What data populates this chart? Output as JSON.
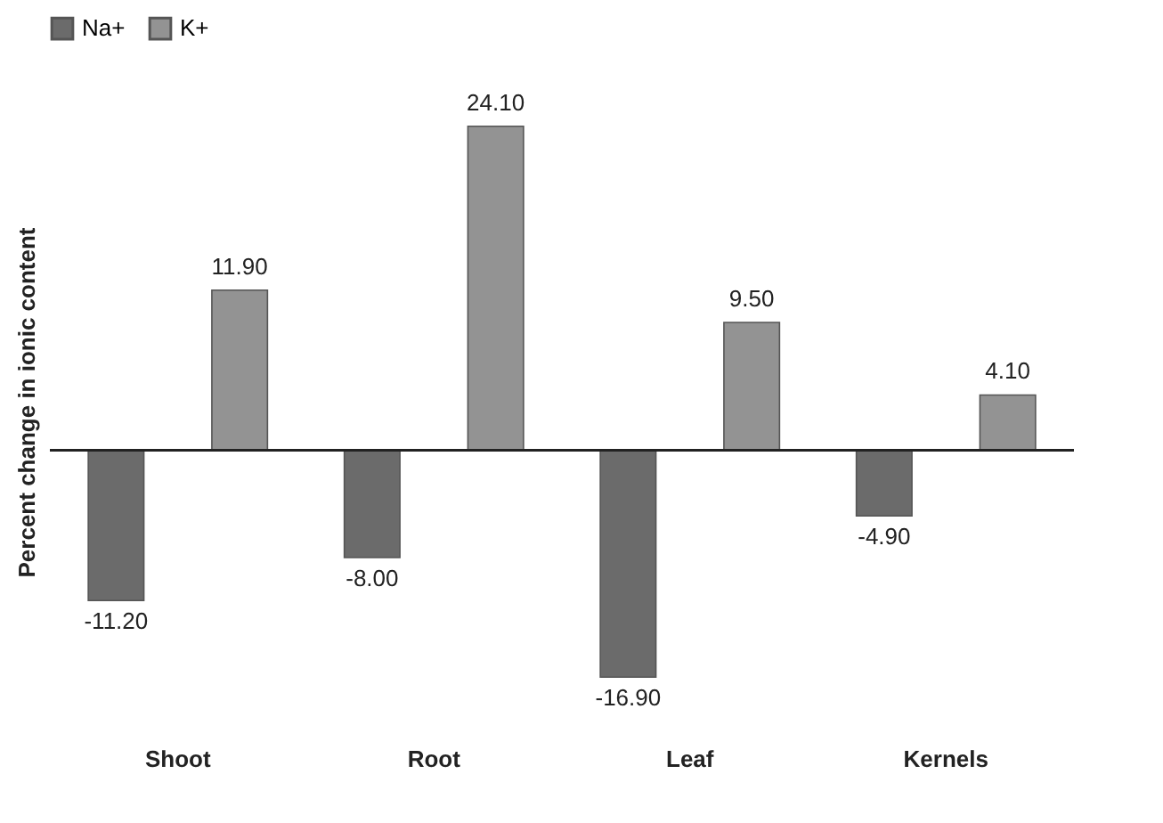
{
  "chart_data": {
    "type": "bar",
    "ylabel": "Percent change in ionic content",
    "categories": [
      "Shoot",
      "Root",
      "Leaf",
      "Kernels"
    ],
    "series": [
      {
        "name": "Na+",
        "color": "#6b6b6b",
        "values": [
          -11.2,
          -8.0,
          -16.9,
          -4.9
        ],
        "value_labels": [
          "-11.20",
          "-8.00",
          "-16.90",
          "-4.90"
        ]
      },
      {
        "name": "K+",
        "color": "#939393",
        "values": [
          11.9,
          24.1,
          9.5,
          4.1
        ],
        "value_labels": [
          "11.90",
          "24.10",
          "9.50",
          "4.10"
        ]
      }
    ],
    "legend": "top",
    "grid": false
  }
}
